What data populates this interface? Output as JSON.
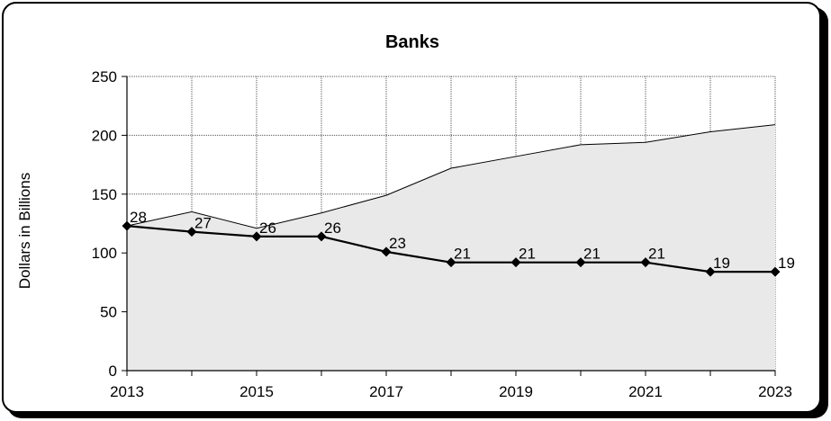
{
  "chart_data": {
    "type": "area",
    "title": "Banks",
    "xlabel": "",
    "ylabel": "Dollars in Billions",
    "x": [
      2013,
      2014,
      2015,
      2016,
      2017,
      2018,
      2019,
      2020,
      2021,
      2022,
      2023
    ],
    "x_tick_labels": [
      "2013",
      "2015",
      "2017",
      "2019",
      "2021",
      "2023"
    ],
    "ylim": [
      0,
      250
    ],
    "y_ticks": [
      0,
      50,
      100,
      150,
      200,
      250
    ],
    "grid": "dotted",
    "series": [
      {
        "name": "",
        "type": "area",
        "values": [
          123,
          135,
          121,
          134,
          149,
          172,
          182,
          192,
          194,
          203,
          209
        ],
        "fill": "#e9e9e9",
        "stroke": "#000000"
      },
      {
        "name": "",
        "type": "line",
        "values": [
          123,
          118,
          114,
          114,
          101,
          92,
          92,
          92,
          92,
          84,
          84
        ],
        "data_labels": [
          "28",
          "27",
          "26",
          "26",
          "23",
          "21",
          "21",
          "21",
          "21",
          "19",
          "19"
        ],
        "marker": "diamond",
        "stroke": "#000000"
      }
    ]
  }
}
